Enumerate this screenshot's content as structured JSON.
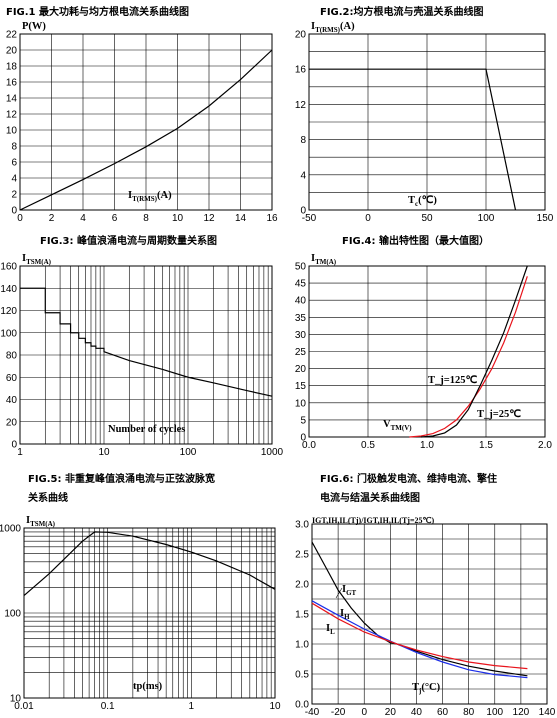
{
  "chart_data": [
    {
      "id": "fig1",
      "type": "line",
      "title": "FIG.1  最大功耗与均方根电流关系曲线图",
      "ylabel": "P(W)",
      "xlabel": "I_T(RMS)(A)",
      "xlim": [
        0,
        16
      ],
      "ylim": [
        0,
        22
      ],
      "xticks": [
        0,
        2,
        4,
        6,
        8,
        10,
        12,
        14,
        16
      ],
      "yticks": [
        0,
        2,
        4,
        6,
        8,
        10,
        12,
        14,
        16,
        18,
        20,
        22
      ],
      "grid": true,
      "series": [
        {
          "color": "#000000",
          "x": [
            0,
            2,
            4,
            6,
            8,
            10,
            12,
            14,
            16
          ],
          "y": [
            0,
            1.9,
            3.8,
            5.8,
            7.9,
            10.2,
            13.0,
            16.3,
            20.0
          ]
        }
      ]
    },
    {
      "id": "fig2",
      "type": "line",
      "title": "FIG.2:均方根电流与壳温关系曲线图",
      "ylabel": "I_T(RMS)(A)",
      "xlabel": "T_c(℃)",
      "xlim": [
        -50,
        150
      ],
      "ylim": [
        0,
        20
      ],
      "xticks": [
        -50,
        0,
        50,
        100,
        150
      ],
      "yticks": [
        0,
        4,
        8,
        12,
        16,
        20
      ],
      "grid": true,
      "series": [
        {
          "color": "#000000",
          "x": [
            -50,
            100,
            125
          ],
          "y": [
            16,
            16,
            0
          ]
        }
      ]
    },
    {
      "id": "fig3",
      "type": "line",
      "title": "FIG.3:  峰值浪涌电流与周期数量关系图",
      "ylabel": "I_TSM(A)",
      "xlabel": "Number of cycles",
      "xscale": "log",
      "xlim": [
        1,
        1000
      ],
      "ylim": [
        0,
        160
      ],
      "xticks": [
        1,
        10,
        100,
        1000
      ],
      "yticks": [
        0,
        20,
        40,
        60,
        80,
        100,
        120,
        140,
        160
      ],
      "grid": true,
      "series": [
        {
          "color": "#000000",
          "step": true,
          "x": [
            1,
            2,
            3,
            4,
            5,
            6,
            7,
            8,
            10,
            20,
            50,
            100,
            200,
            500,
            1000
          ],
          "y": [
            140,
            118,
            108,
            100,
            95,
            91,
            88,
            86,
            83,
            75,
            67,
            60,
            55,
            48,
            43
          ]
        }
      ]
    },
    {
      "id": "fig4",
      "type": "line",
      "title": "FIG.4:  输出特性图（最大值图）",
      "ylabel": "I_TM(A)",
      "xlabel": "V_TM(V)",
      "xlim": [
        0,
        2.0
      ],
      "ylim": [
        0,
        50
      ],
      "xticks": [
        0.0,
        0.5,
        1.0,
        1.5,
        2.0
      ],
      "yticks": [
        0,
        5,
        10,
        15,
        20,
        25,
        30,
        35,
        40,
        45,
        50
      ],
      "grid": true,
      "annotations": [
        "T_j=125℃",
        "T_j=25℃"
      ],
      "series": [
        {
          "name": "T_j=125℃",
          "color": "#e8141c",
          "x": [
            0.85,
            0.95,
            1.05,
            1.15,
            1.25,
            1.35,
            1.45,
            1.55,
            1.65,
            1.75,
            1.85
          ],
          "y": [
            0,
            0.3,
            1,
            2.5,
            5,
            9,
            14,
            20,
            27.5,
            36.5,
            47
          ]
        },
        {
          "name": "T_j=25℃",
          "color": "#000000",
          "x": [
            0.95,
            1.05,
            1.15,
            1.25,
            1.35,
            1.45,
            1.55,
            1.65,
            1.75,
            1.85
          ],
          "y": [
            0,
            0.3,
            1.2,
            3.5,
            8,
            15,
            22.5,
            30.5,
            40,
            50
          ]
        }
      ]
    },
    {
      "id": "fig5",
      "type": "line",
      "title_line1": "FIG.5:  非重复峰值浪涌电流与正弦波脉宽",
      "title_line2": "关系曲线",
      "ylabel": "I_TSM(A)",
      "xlabel": "tp(ms)",
      "xscale": "log",
      "yscale": "log",
      "xlim": [
        0.01,
        10
      ],
      "ylim": [
        10,
        1000
      ],
      "xticks": [
        0.01,
        0.1,
        1,
        10
      ],
      "yticks": [
        10,
        100,
        1000
      ],
      "grid": true,
      "series": [
        {
          "color": "#000000",
          "x": [
            0.01,
            0.02,
            0.05,
            0.07,
            0.1,
            0.2,
            0.5,
            1,
            2,
            5,
            10
          ],
          "y": [
            160,
            290,
            700,
            900,
            890,
            800,
            640,
            520,
            410,
            280,
            190
          ]
        }
      ]
    },
    {
      "id": "fig6",
      "type": "line",
      "title_line1": "FIG.6:  门极触发电流、维持电流、擎住",
      "title_line2": "电流与结温关系曲线图",
      "ylabel": "I_GT,I_H,I_L(T_j)/I_GT,I_H,I_L(T_j=25℃)",
      "xlabel": "T_j(°C)",
      "xlim": [
        -40,
        140
      ],
      "ylim": [
        0,
        3.0
      ],
      "xticks": [
        -40,
        -20,
        0,
        20,
        40,
        60,
        80,
        100,
        120,
        140
      ],
      "yticks": [
        0,
        0.5,
        1.0,
        1.5,
        2.0,
        2.5,
        3.0
      ],
      "grid": true,
      "series": [
        {
          "name": "I_GT",
          "color": "#000000",
          "x": [
            -40,
            -30,
            -20,
            -10,
            0,
            10,
            20,
            25,
            40,
            60,
            80,
            100,
            125
          ],
          "y": [
            2.7,
            2.3,
            1.9,
            1.6,
            1.35,
            1.15,
            1.02,
            1.0,
            0.88,
            0.74,
            0.63,
            0.55,
            0.47
          ]
        },
        {
          "name": "I_H",
          "color": "#1c2ee8",
          "x": [
            -40,
            -20,
            0,
            20,
            25,
            40,
            60,
            80,
            100,
            125
          ],
          "y": [
            1.72,
            1.48,
            1.25,
            1.05,
            1.0,
            0.86,
            0.7,
            0.57,
            0.49,
            0.44
          ]
        },
        {
          "name": "I_L",
          "color": "#e8141c",
          "x": [
            -40,
            -20,
            0,
            20,
            25,
            40,
            60,
            80,
            100,
            125
          ],
          "y": [
            1.68,
            1.42,
            1.2,
            1.04,
            1.0,
            0.9,
            0.79,
            0.7,
            0.64,
            0.59
          ]
        }
      ]
    }
  ]
}
